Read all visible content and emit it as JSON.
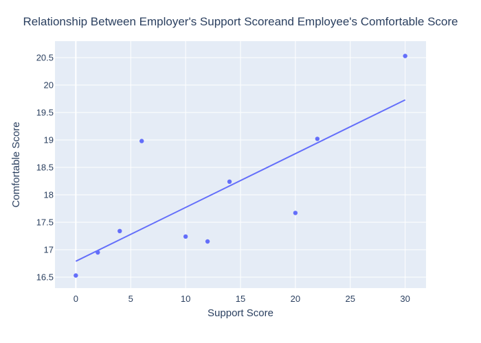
{
  "chart_data": {
    "type": "scatter",
    "title": "Relationship Between Employer's Support Scoreand Employee's Comfortable Score",
    "xlabel": "Support Score",
    "ylabel": "Comfortable Score",
    "xlim": [
      -1.9,
      31.9
    ],
    "ylim": [
      16.3,
      20.8
    ],
    "xticks": [
      0,
      5,
      10,
      15,
      20,
      25,
      30
    ],
    "yticks": [
      16.5,
      17,
      17.5,
      18,
      18.5,
      19,
      19.5,
      20,
      20.5
    ],
    "grid": true,
    "legend": "none",
    "colors": {
      "background": "#e5ecf6",
      "grid": "#ffffff",
      "marker": "#636efa",
      "text": "#2a3f5f"
    },
    "points": [
      {
        "x": 0,
        "y": 16.53
      },
      {
        "x": 2,
        "y": 16.95
      },
      {
        "x": 4,
        "y": 17.34
      },
      {
        "x": 6,
        "y": 18.98
      },
      {
        "x": 10,
        "y": 17.24
      },
      {
        "x": 12,
        "y": 17.15
      },
      {
        "x": 14,
        "y": 18.24
      },
      {
        "x": 20,
        "y": 17.67
      },
      {
        "x": 22,
        "y": 19.02
      },
      {
        "x": 30,
        "y": 20.53
      }
    ],
    "trendline": [
      {
        "x": 0,
        "y": 16.79
      },
      {
        "x": 30,
        "y": 19.73
      }
    ]
  }
}
